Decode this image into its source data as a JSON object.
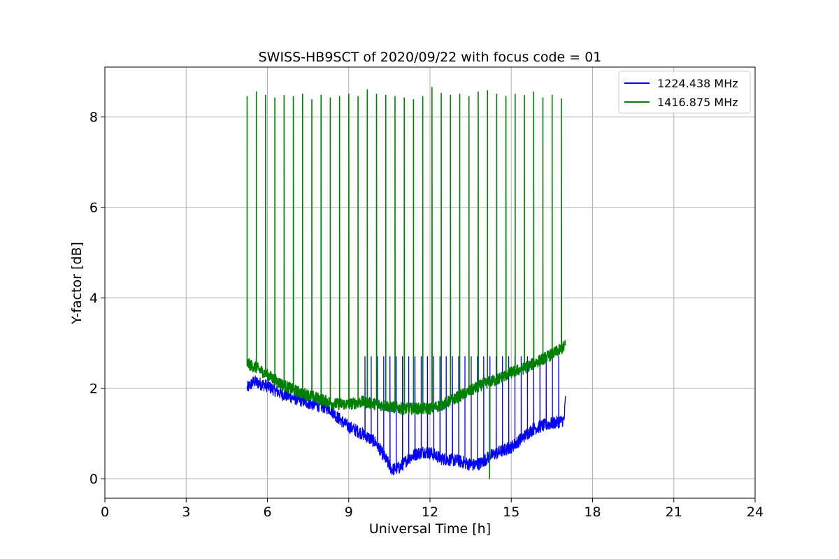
{
  "chart_data": {
    "type": "line",
    "title": "SWISS-HB9SCT of 2020/09/22 with focus code = 01",
    "xlabel": "Universal Time [h]",
    "ylabel": "Y-factor [dB]",
    "xlim": [
      0,
      24
    ],
    "ylim": [
      -0.43,
      9.1
    ],
    "xticks": [
      0,
      3,
      6,
      9,
      12,
      15,
      18,
      21,
      24
    ],
    "yticks": [
      0,
      2,
      4,
      6,
      8
    ],
    "grid": true,
    "legend_position": "top-right",
    "series": [
      {
        "name": "1224.438 MHz",
        "color": "#0000ff",
        "baseline": [
          [
            5.25,
            2.0
          ],
          [
            5.5,
            2.15
          ],
          [
            6.0,
            2.05
          ],
          [
            6.5,
            1.88
          ],
          [
            7.0,
            1.78
          ],
          [
            7.5,
            1.68
          ],
          [
            8.0,
            1.6
          ],
          [
            8.3,
            1.55
          ],
          [
            8.6,
            1.35
          ],
          [
            9.0,
            1.15
          ],
          [
            9.5,
            1.0
          ],
          [
            10.0,
            0.8
          ],
          [
            10.3,
            0.5
          ],
          [
            10.6,
            0.2
          ],
          [
            10.9,
            0.25
          ],
          [
            11.2,
            0.45
          ],
          [
            11.5,
            0.55
          ],
          [
            11.8,
            0.6
          ],
          [
            12.1,
            0.55
          ],
          [
            12.4,
            0.45
          ],
          [
            12.7,
            0.42
          ],
          [
            13.0,
            0.4
          ],
          [
            13.3,
            0.35
          ],
          [
            13.6,
            0.3
          ],
          [
            13.9,
            0.35
          ],
          [
            14.2,
            0.5
          ],
          [
            14.6,
            0.6
          ],
          [
            15.0,
            0.7
          ],
          [
            15.4,
            0.9
          ],
          [
            15.8,
            1.1
          ],
          [
            16.3,
            1.2
          ],
          [
            16.7,
            1.25
          ],
          [
            16.95,
            1.3
          ],
          [
            17.0,
            1.75
          ]
        ],
        "spikes_to": 2.7,
        "spike_count": 32
      },
      {
        "name": "1416.875 MHz",
        "color": "#008000",
        "baseline": [
          [
            5.25,
            2.55
          ],
          [
            5.6,
            2.45
          ],
          [
            6.0,
            2.3
          ],
          [
            6.5,
            2.1
          ],
          [
            7.0,
            1.95
          ],
          [
            7.5,
            1.85
          ],
          [
            8.0,
            1.75
          ],
          [
            8.5,
            1.65
          ],
          [
            9.0,
            1.65
          ],
          [
            9.5,
            1.7
          ],
          [
            10.0,
            1.65
          ],
          [
            10.5,
            1.6
          ],
          [
            11.0,
            1.55
          ],
          [
            11.5,
            1.55
          ],
          [
            12.0,
            1.55
          ],
          [
            12.5,
            1.65
          ],
          [
            13.0,
            1.8
          ],
          [
            13.5,
            1.95
          ],
          [
            14.0,
            2.1
          ],
          [
            14.5,
            2.2
          ],
          [
            15.0,
            2.35
          ],
          [
            15.5,
            2.45
          ],
          [
            16.0,
            2.6
          ],
          [
            16.5,
            2.75
          ],
          [
            16.8,
            2.85
          ],
          [
            17.0,
            2.95
          ]
        ],
        "spike_peaks": [
          8.45,
          8.55,
          8.48,
          8.42,
          8.47,
          8.45,
          8.5,
          8.38,
          8.48,
          8.42,
          8.45,
          8.5,
          8.45,
          8.6,
          8.5,
          8.48,
          8.45,
          8.42,
          8.38,
          8.45,
          8.65,
          8.52,
          8.48,
          8.5,
          8.45,
          8.55,
          8.58,
          8.5,
          8.45,
          8.5,
          8.47,
          8.55,
          8.42,
          8.48,
          8.4
        ],
        "dip": {
          "x": 14.2,
          "y": 0.0
        }
      }
    ]
  }
}
